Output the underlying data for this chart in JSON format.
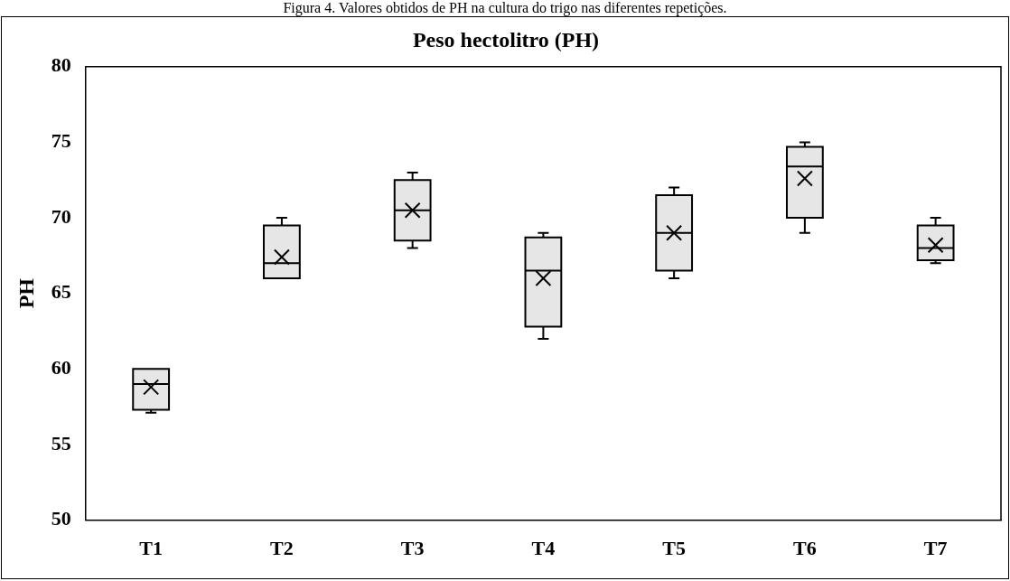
{
  "chart_data": {
    "type": "box",
    "title": "Peso hectolitro (PH)",
    "ylabel": "PH",
    "annotations": [
      "Figura 4. Valores obtidos de PH na cultura do trigo nas diferentes repetições."
    ],
    "categories": [
      "T1",
      "T2",
      "T3",
      "T4",
      "T5",
      "T6",
      "T7"
    ],
    "color": "#e6e6e6",
    "marker": "cross",
    "boxes": [
      {
        "low": 57.1,
        "q1": 57.3,
        "median": 59,
        "q3": 60,
        "high": 60,
        "mean": 58.8
      },
      {
        "low": 66,
        "q1": 66,
        "median": 67,
        "q3": 69.5,
        "high": 70,
        "mean": 67.4
      },
      {
        "low": 68,
        "q1": 68.5,
        "median": 70.5,
        "q3": 72.5,
        "high": 73,
        "mean": 70.5
      },
      {
        "low": 62,
        "q1": 62.8,
        "median": 66.5,
        "q3": 68.7,
        "high": 69,
        "mean": 66
      },
      {
        "low": 66,
        "q1": 66.5,
        "median": 69,
        "q3": 71.5,
        "high": 72,
        "mean": 69
      },
      {
        "low": 69,
        "q1": 70,
        "median": 73.4,
        "q3": 74.7,
        "high": 75,
        "mean": 72.6
      },
      {
        "low": 67,
        "q1": 67.2,
        "median": 68,
        "q3": 69.5,
        "high": 70,
        "mean": 68.2
      }
    ],
    "ylim": [
      50,
      80
    ],
    "yticks": [
      50,
      55,
      60,
      65,
      70,
      75,
      80
    ]
  }
}
